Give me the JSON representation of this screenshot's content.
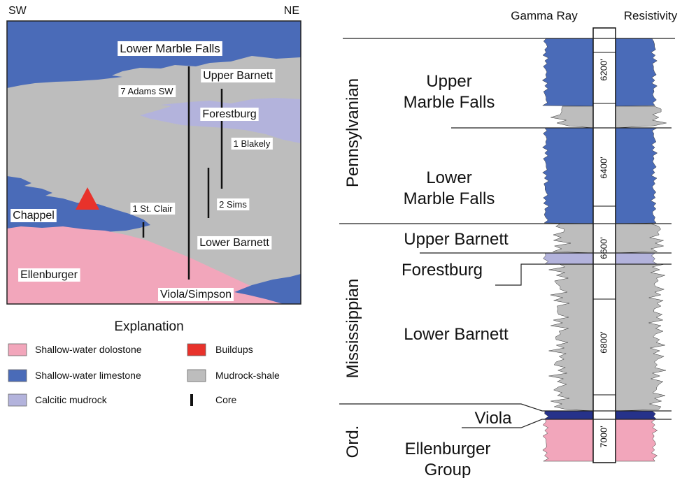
{
  "cross_section": {
    "direction_left": "SW",
    "direction_right": "NE",
    "units": [
      "Lower Marble Falls",
      "Upper Barnett",
      "Forestburg",
      "Chappel",
      "Lower Barnett",
      "Ellenburger",
      "Viola/Simpson"
    ],
    "wells": [
      "7 Adams SW",
      "1 Blakely",
      "1 St. Clair",
      "2 Sims"
    ]
  },
  "explanation": {
    "title": "Explanation",
    "items": [
      "Shallow-water dolostone",
      "Shallow-water limestone",
      "Calcitic mudrock",
      "Buildups",
      "Mudrock-shale",
      "Core"
    ]
  },
  "log": {
    "headers": [
      "Gamma Ray",
      "Resistivity"
    ],
    "depths": [
      "6200'",
      "6400'",
      "6600'",
      "6800'",
      "7000'"
    ],
    "systems": [
      "Pennsylvanian",
      "Mississippian",
      "Ord."
    ],
    "formations": [
      [
        "Upper",
        "Marble Falls"
      ],
      [
        "Lower",
        "Marble Falls"
      ],
      [
        "Upper Barnett"
      ],
      [
        "Forestburg"
      ],
      [
        "Lower Barnett"
      ],
      [
        "Viola"
      ],
      [
        "Ellenburger",
        "Group"
      ]
    ]
  }
}
